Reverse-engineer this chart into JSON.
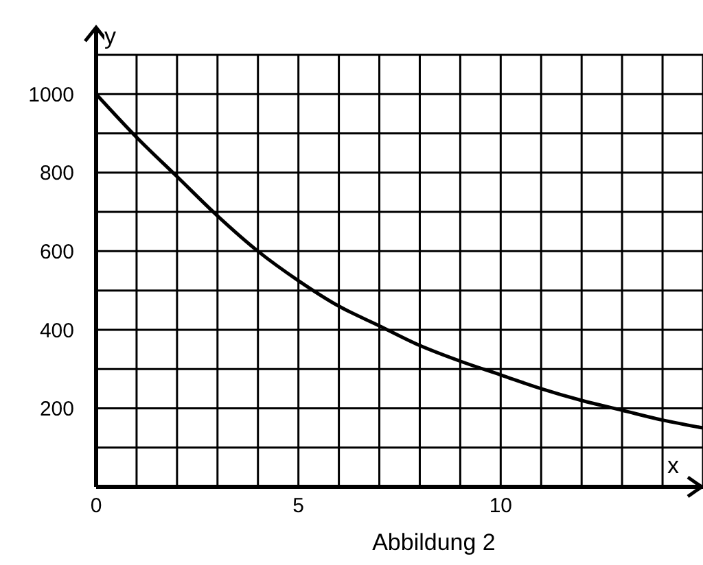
{
  "chart_data": {
    "type": "line",
    "xlabel": "x",
    "ylabel": "y",
    "annotations": [
      "Abbildung 2"
    ],
    "x": [
      0,
      1,
      2,
      3,
      4,
      5,
      6,
      7,
      8,
      9,
      10,
      11,
      12,
      13,
      14,
      15
    ],
    "series": [
      {
        "color": "#000000",
        "values": [
          1000,
          890,
          790,
          690,
          600,
          525,
          460,
          410,
          360,
          320,
          285,
          250,
          220,
          195,
          170,
          150
        ]
      }
    ],
    "xlim": [
      0,
      15
    ],
    "ylim": [
      0,
      1100
    ],
    "xticks": [
      0,
      {
        "value": 1,
        "label": null
      },
      {
        "value": 2,
        "label": null
      },
      {
        "value": 3,
        "label": null
      },
      {
        "value": 4,
        "label": null
      },
      5,
      {
        "value": 6,
        "label": null
      },
      {
        "value": 7,
        "label": null
      },
      {
        "value": 8,
        "label": null
      },
      {
        "value": 9,
        "label": null
      },
      10,
      {
        "value": 11,
        "label": null
      },
      {
        "value": 12,
        "label": null
      },
      {
        "value": 13,
        "label": null
      },
      {
        "value": 14,
        "label": null
      },
      {
        "value": 15,
        "label": null
      }
    ],
    "yticks": [
      {
        "value": 0,
        "label": null
      },
      {
        "value": 100,
        "label": null
      },
      200,
      {
        "value": 300,
        "label": null
      },
      400,
      {
        "value": 500,
        "label": null
      },
      600,
      {
        "value": 700,
        "label": null
      },
      800,
      {
        "value": 900,
        "label": null
      },
      1000,
      {
        "value": 1100,
        "label": null
      }
    ],
    "grid": true,
    "marker": "none",
    "line_style": "solid"
  }
}
